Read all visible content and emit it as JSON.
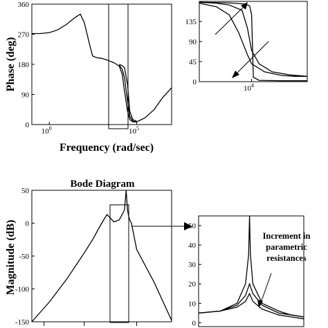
{
  "chart_data": [
    {
      "id": "phase_main",
      "type": "line",
      "ylabel": "Phase (deg)",
      "xlabel": "Frequency (rad/sec)",
      "xscale": "log",
      "xlim": [
        0.1,
        10000000
      ],
      "ylim": [
        0,
        360
      ],
      "yticks": [
        "0",
        "90",
        "180",
        "270",
        "360"
      ],
      "xticks": [
        {
          "base": "10",
          "exp": "0",
          "value": 1
        },
        {
          "base": "10",
          "exp": "5",
          "value": 100000
        }
      ],
      "series": [
        {
          "x": [
            0.1,
            0.3,
            1,
            3,
            10,
            30,
            60,
            100,
            200,
            300,
            500,
            1000,
            2000,
            5000,
            10000,
            15000,
            20000,
            30000,
            40000,
            60000,
            100000,
            300000,
            1000000,
            3000000,
            10000000
          ],
          "y": [
            272,
            272,
            275,
            283,
            300,
            320,
            330,
            305,
            240,
            205,
            200,
            198,
            193,
            185,
            175,
            150,
            100,
            40,
            15,
            8,
            8,
            20,
            45,
            80,
            110
          ]
        },
        {
          "x": [
            10000,
            15000,
            20000,
            30000,
            40000,
            60000,
            100000
          ],
          "y": [
            178,
            165,
            140,
            70,
            25,
            10,
            9
          ]
        },
        {
          "x": [
            10000,
            15000,
            20000,
            30000,
            40000,
            60000,
            100000
          ],
          "y": [
            180,
            176,
            170,
            120,
            40,
            15,
            10
          ]
        }
      ]
    },
    {
      "id": "phase_zoom",
      "type": "line",
      "xscale": "log",
      "xlim": [
        600,
        200000
      ],
      "ylim": [
        0,
        180
      ],
      "yticks": [
        "0",
        "45",
        "90",
        "135"
      ],
      "xticks": [
        {
          "base": "10",
          "exp": "4",
          "value": 10000
        }
      ],
      "series": [
        {
          "x": [
            600,
            1500,
            3000,
            6000,
            8000,
            10000,
            15000,
            30000,
            80000,
            200000
          ],
          "y": [
            178,
            176,
            172,
            160,
            120,
            70,
            40,
            22,
            15,
            12
          ]
        },
        {
          "x": [
            600,
            1500,
            3000,
            5000,
            8000,
            10000,
            20000,
            50000,
            100000,
            200000
          ],
          "y": [
            176,
            168,
            150,
            110,
            60,
            40,
            22,
            14,
            12,
            12
          ]
        },
        {
          "x": [
            600,
            2000,
            4000,
            7000,
            9000,
            10000,
            11000,
            15000,
            50000,
            200000
          ],
          "y": [
            178,
            177,
            176,
            174,
            170,
            150,
            10,
            3,
            2,
            2
          ]
        }
      ]
    },
    {
      "id": "magnitude_main",
      "type": "line",
      "title": "Bode Diagram",
      "ylabel": "Magnitude (dB)",
      "xscale": "log",
      "xlim": [
        0.1,
        10000000
      ],
      "ylim": [
        -150,
        50
      ],
      "yticks": [
        "-150",
        "-100",
        "-50",
        "0",
        "50"
      ],
      "series": [
        {
          "x": [
            0.1,
            1,
            10,
            100,
            300,
            1000,
            2000,
            5000,
            10000,
            20000,
            25000,
            30000,
            35000,
            40000,
            50000,
            100000,
            1000000,
            10000000
          ],
          "y": [
            -150,
            -120,
            -85,
            -45,
            -25,
            0,
            13,
            2,
            5,
            20,
            58,
            20,
            10,
            5,
            0,
            -40,
            -90,
            -148
          ]
        }
      ]
    },
    {
      "id": "magnitude_zoom",
      "type": "line",
      "xscale": "log",
      "xlim": [
        600,
        200000
      ],
      "ylim": [
        -2,
        55
      ],
      "yticks": [
        "0",
        "10",
        "20",
        "30",
        "40",
        "50"
      ],
      "series": [
        {
          "x": [
            600,
            2000,
            5000,
            8000,
            9500,
            10000,
            10500,
            12000,
            20000,
            50000,
            100000,
            200000
          ],
          "y": [
            5,
            6,
            10,
            20,
            35,
            55,
            35,
            20,
            10,
            6,
            4,
            3
          ]
        },
        {
          "x": [
            600,
            2000,
            5000,
            8000,
            10000,
            12000,
            20000,
            50000,
            100000,
            200000
          ],
          "y": [
            5,
            6,
            9,
            14,
            20,
            15,
            9,
            5,
            4,
            3
          ]
        },
        {
          "x": [
            600,
            2000,
            5000,
            8000,
            10000,
            12000,
            20000,
            50000,
            100000,
            200000
          ],
          "y": [
            5,
            6,
            8,
            11,
            15,
            11,
            7,
            4,
            3,
            2
          ]
        }
      ]
    }
  ],
  "annotation": {
    "lines": [
      "Increment in",
      "parametric",
      "resistances"
    ]
  }
}
